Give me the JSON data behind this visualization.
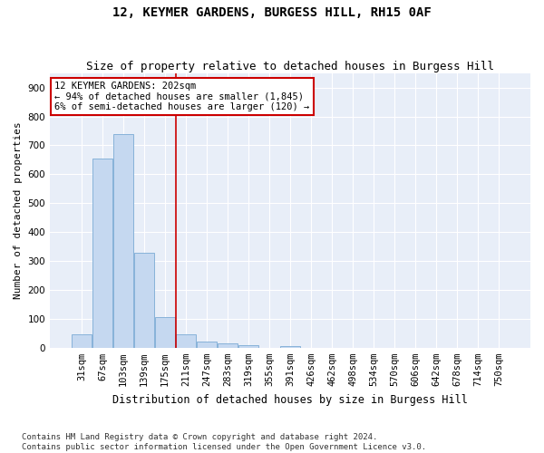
{
  "title": "12, KEYMER GARDENS, BURGESS HILL, RH15 0AF",
  "subtitle": "Size of property relative to detached houses in Burgess Hill",
  "xlabel": "Distribution of detached houses by size in Burgess Hill",
  "ylabel": "Number of detached properties",
  "categories": [
    "31sqm",
    "67sqm",
    "103sqm",
    "139sqm",
    "175sqm",
    "211sqm",
    "247sqm",
    "283sqm",
    "319sqm",
    "355sqm",
    "391sqm",
    "426sqm",
    "462sqm",
    "498sqm",
    "534sqm",
    "570sqm",
    "606sqm",
    "642sqm",
    "678sqm",
    "714sqm",
    "750sqm"
  ],
  "values": [
    47,
    655,
    738,
    328,
    105,
    47,
    22,
    14,
    9,
    0,
    7,
    0,
    0,
    0,
    0,
    0,
    0,
    0,
    0,
    0,
    0
  ],
  "bar_color": "#c5d8f0",
  "bar_edge_color": "#7aaad4",
  "vline_color": "#cc0000",
  "annotation_text": "12 KEYMER GARDENS: 202sqm\n← 94% of detached houses are smaller (1,845)\n6% of semi-detached houses are larger (120) →",
  "annotation_box_color": "#ffffff",
  "annotation_box_edge": "#cc0000",
  "ylim": [
    0,
    950
  ],
  "yticks": [
    0,
    100,
    200,
    300,
    400,
    500,
    600,
    700,
    800,
    900
  ],
  "background_color": "#e8eef8",
  "grid_color": "#ffffff",
  "fig_background": "#ffffff",
  "footer": "Contains HM Land Registry data © Crown copyright and database right 2024.\nContains public sector information licensed under the Open Government Licence v3.0.",
  "title_fontsize": 10,
  "subtitle_fontsize": 9,
  "xlabel_fontsize": 8.5,
  "ylabel_fontsize": 8,
  "tick_fontsize": 7.5,
  "annotation_fontsize": 7.5,
  "footer_fontsize": 6.5
}
